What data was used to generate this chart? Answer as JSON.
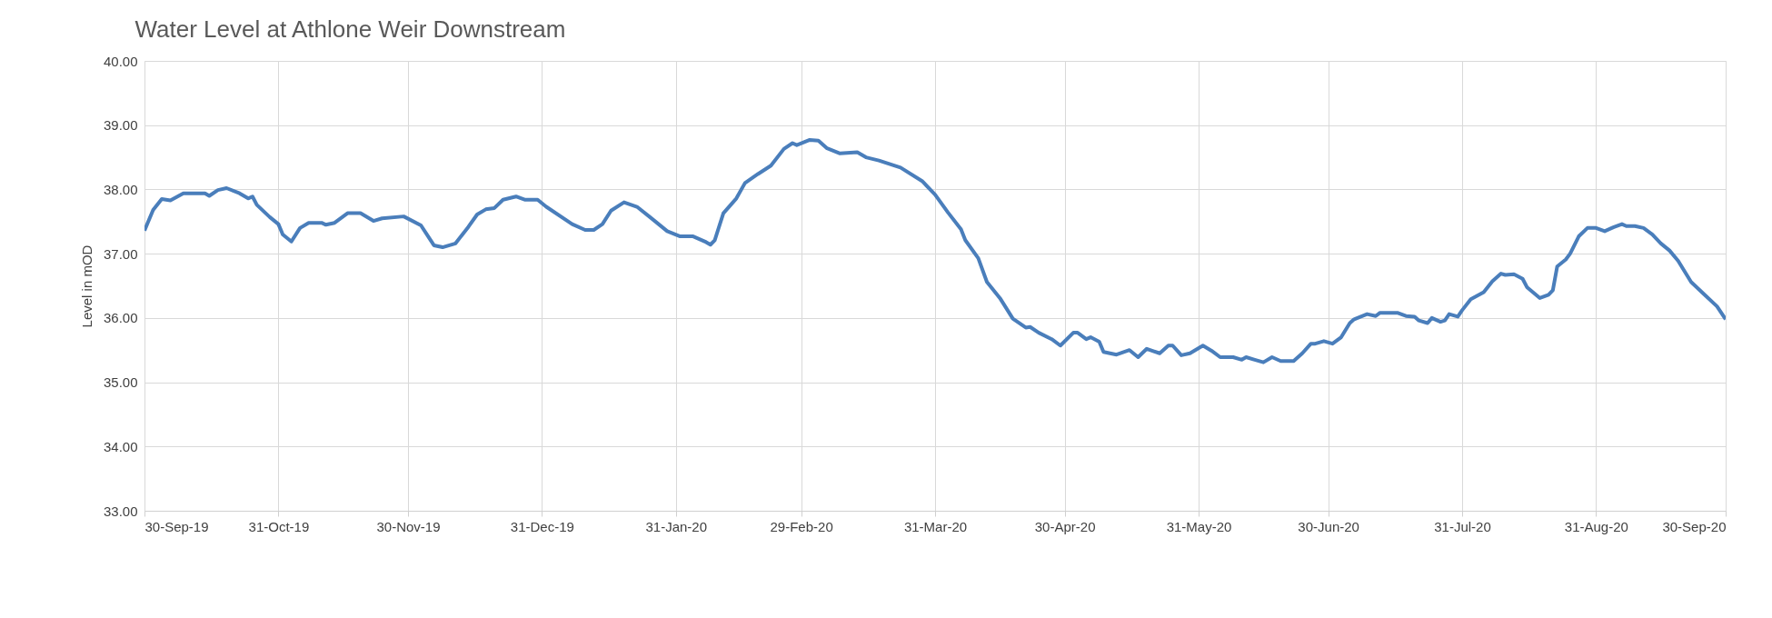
{
  "chart_data": {
    "type": "line",
    "title": "Water Level at Athlone Weir Downstream",
    "ylabel": "Level in mOD",
    "x": [
      "2019-09-30",
      "2019-10-02",
      "2019-10-04",
      "2019-10-06",
      "2019-10-09",
      "2019-10-14",
      "2019-10-15",
      "2019-10-17",
      "2019-10-19",
      "2019-10-22",
      "2019-10-24",
      "2019-10-25",
      "2019-10-26",
      "2019-10-29",
      "2019-10-31",
      "2019-11-01",
      "2019-11-03",
      "2019-11-05",
      "2019-11-07",
      "2019-11-10",
      "2019-11-11",
      "2019-11-13",
      "2019-11-16",
      "2019-11-19",
      "2019-11-22",
      "2019-11-24",
      "2019-11-29",
      "2019-12-03",
      "2019-12-06",
      "2019-12-08",
      "2019-12-11",
      "2019-12-14",
      "2019-12-16",
      "2019-12-18",
      "2019-12-20",
      "2019-12-22",
      "2019-12-25",
      "2019-12-27",
      "2019-12-30",
      "2020-01-01",
      "2020-01-07",
      "2020-01-10",
      "2020-01-12",
      "2020-01-14",
      "2020-01-16",
      "2020-01-19",
      "2020-01-22",
      "2020-01-25",
      "2020-01-29",
      "2020-02-01",
      "2020-02-04",
      "2020-02-07",
      "2020-02-08",
      "2020-02-09",
      "2020-02-11",
      "2020-02-14",
      "2020-02-16",
      "2020-02-19",
      "2020-02-22",
      "2020-02-25",
      "2020-02-27",
      "2020-02-28",
      "2020-03-02",
      "2020-03-04",
      "2020-03-06",
      "2020-03-09",
      "2020-03-13",
      "2020-03-15",
      "2020-03-18",
      "2020-03-23",
      "2020-03-28",
      "2020-03-31",
      "2020-04-03",
      "2020-04-06",
      "2020-04-07",
      "2020-04-10",
      "2020-04-12",
      "2020-04-15",
      "2020-04-18",
      "2020-04-21",
      "2020-04-22",
      "2020-04-24",
      "2020-04-27",
      "2020-04-29",
      "2020-05-02",
      "2020-05-03",
      "2020-05-05",
      "2020-05-06",
      "2020-05-08",
      "2020-05-09",
      "2020-05-12",
      "2020-05-15",
      "2020-05-17",
      "2020-05-19",
      "2020-05-22",
      "2020-05-24",
      "2020-05-25",
      "2020-05-27",
      "2020-05-29",
      "2020-06-01",
      "2020-06-03",
      "2020-06-05",
      "2020-06-08",
      "2020-06-10",
      "2020-06-11",
      "2020-06-13",
      "2020-06-15",
      "2020-06-17",
      "2020-06-19",
      "2020-06-22",
      "2020-06-24",
      "2020-06-26",
      "2020-06-27",
      "2020-06-29",
      "2020-07-01",
      "2020-07-03",
      "2020-07-05",
      "2020-07-06",
      "2020-07-09",
      "2020-07-11",
      "2020-07-12",
      "2020-07-16",
      "2020-07-18",
      "2020-07-20",
      "2020-07-21",
      "2020-07-23",
      "2020-07-24",
      "2020-07-26",
      "2020-07-27",
      "2020-07-28",
      "2020-07-30",
      "2020-07-31",
      "2020-08-02",
      "2020-08-05",
      "2020-08-07",
      "2020-08-09",
      "2020-08-10",
      "2020-08-12",
      "2020-08-14",
      "2020-08-15",
      "2020-08-18",
      "2020-08-20",
      "2020-08-21",
      "2020-08-22",
      "2020-08-24",
      "2020-08-25",
      "2020-08-27",
      "2020-08-29",
      "2020-08-31",
      "2020-09-02",
      "2020-09-04",
      "2020-09-06",
      "2020-09-07",
      "2020-09-09",
      "2020-09-11",
      "2020-09-13",
      "2020-09-15",
      "2020-09-17",
      "2020-09-19",
      "2020-09-22",
      "2020-09-25",
      "2020-09-28",
      "2020-09-30"
    ],
    "series": [
      {
        "color": "#4a7ebb",
        "values": [
          37.36,
          37.68,
          37.85,
          37.83,
          37.94,
          37.94,
          37.9,
          37.99,
          38.02,
          37.94,
          37.86,
          37.89,
          37.76,
          37.57,
          37.46,
          37.3,
          37.19,
          37.4,
          37.48,
          37.48,
          37.45,
          37.48,
          37.63,
          37.63,
          37.51,
          37.55,
          37.58,
          37.44,
          37.13,
          37.1,
          37.16,
          37.42,
          37.61,
          37.69,
          37.71,
          37.84,
          37.89,
          37.84,
          37.84,
          37.73,
          37.46,
          37.37,
          37.37,
          37.46,
          37.67,
          37.8,
          37.73,
          37.57,
          37.35,
          37.27,
          37.27,
          37.18,
          37.14,
          37.21,
          37.63,
          37.86,
          38.1,
          38.24,
          38.37,
          38.63,
          38.72,
          38.69,
          38.77,
          38.76,
          38.64,
          38.56,
          38.58,
          38.5,
          38.45,
          38.34,
          38.13,
          37.92,
          37.64,
          37.38,
          37.21,
          36.93,
          36.56,
          36.31,
          35.99,
          35.85,
          35.86,
          35.77,
          35.67,
          35.57,
          35.77,
          35.77,
          35.67,
          35.7,
          35.63,
          35.47,
          35.43,
          35.5,
          35.39,
          35.52,
          35.45,
          35.57,
          35.57,
          35.42,
          35.45,
          35.57,
          35.49,
          35.39,
          35.39,
          35.35,
          35.39,
          35.35,
          35.31,
          35.39,
          35.33,
          35.33,
          35.45,
          35.6,
          35.6,
          35.64,
          35.6,
          35.7,
          35.92,
          35.98,
          36.06,
          36.03,
          36.08,
          36.08,
          36.03,
          36.02,
          35.96,
          35.92,
          36.0,
          35.94,
          35.96,
          36.06,
          36.02,
          36.12,
          36.29,
          36.4,
          36.57,
          36.69,
          36.67,
          36.68,
          36.61,
          36.48,
          36.31,
          36.36,
          36.43,
          36.8,
          36.91,
          37.0,
          37.27,
          37.4,
          37.4,
          37.35,
          37.41,
          37.46,
          37.43,
          37.43,
          37.4,
          37.3,
          37.16,
          37.05,
          36.89,
          36.56,
          36.37,
          36.18,
          35.98
        ]
      }
    ],
    "xlim": [
      "2019-09-30",
      "2020-09-30"
    ],
    "xticks": [
      {
        "value": "2019-09-30",
        "label": "30-Sep-19"
      },
      {
        "value": "2019-10-31",
        "label": "31-Oct-19"
      },
      {
        "value": "2019-11-30",
        "label": "30-Nov-19"
      },
      {
        "value": "2019-12-31",
        "label": "31-Dec-19"
      },
      {
        "value": "2020-01-31",
        "label": "31-Jan-20"
      },
      {
        "value": "2020-02-29",
        "label": "29-Feb-20"
      },
      {
        "value": "2020-03-31",
        "label": "31-Mar-20"
      },
      {
        "value": "2020-04-30",
        "label": "30-Apr-20"
      },
      {
        "value": "2020-05-31",
        "label": "31-May-20"
      },
      {
        "value": "2020-06-30",
        "label": "30-Jun-20"
      },
      {
        "value": "2020-07-31",
        "label": "31-Jul-20"
      },
      {
        "value": "2020-08-31",
        "label": "31-Aug-20"
      },
      {
        "value": "2020-09-30",
        "label": "30-Sep-20"
      }
    ],
    "ylim": [
      33,
      40
    ],
    "yticks": [
      {
        "value": 33,
        "label": "33.00"
      },
      {
        "value": 34,
        "label": "34.00"
      },
      {
        "value": 35,
        "label": "35.00"
      },
      {
        "value": 36,
        "label": "36.00"
      },
      {
        "value": 37,
        "label": "37.00"
      },
      {
        "value": 38,
        "label": "38.00"
      },
      {
        "value": 39,
        "label": "39.00"
      },
      {
        "value": 40,
        "label": "40.00"
      }
    ],
    "grid": true,
    "marker": "none",
    "line_style": "solid"
  }
}
